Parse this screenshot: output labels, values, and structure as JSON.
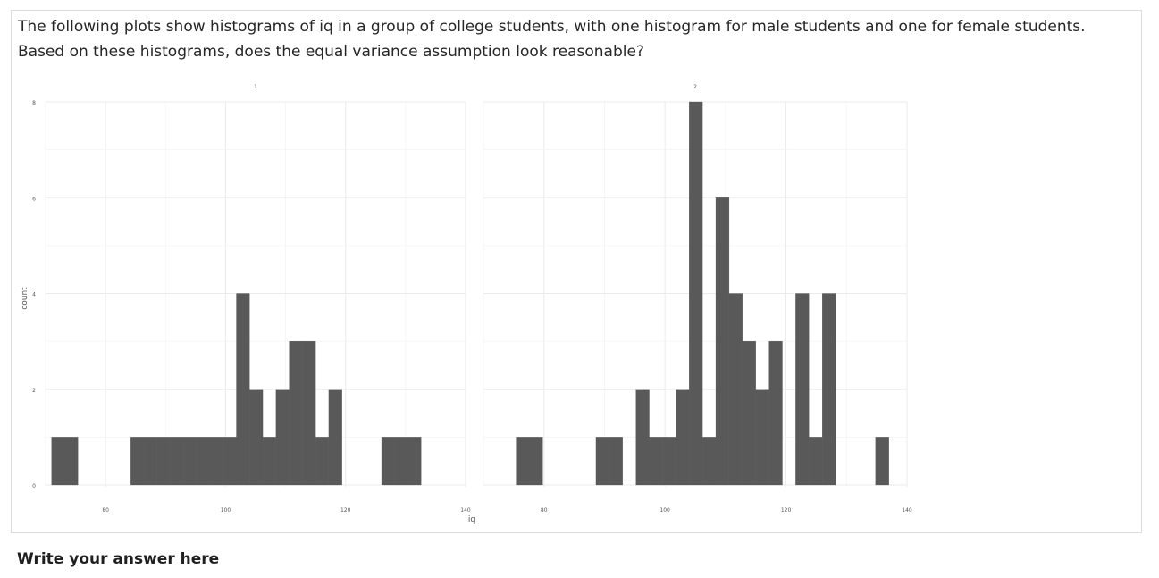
{
  "question": {
    "text": "The following plots show histograms of iq in a group of college students, with one histogram for male students and one for female students. Based on these histograms, does the equal variance assumption look reasonable?"
  },
  "answer": {
    "heading": "Write your answer here"
  },
  "chart_data": {
    "type": "bar",
    "xlabel": "iq",
    "ylabel": "count",
    "xlim": [
      70,
      140
    ],
    "ylim": [
      0,
      8
    ],
    "x_ticks": [
      80,
      100,
      120,
      140
    ],
    "y_ticks": [
      0,
      2,
      4,
      6,
      8
    ],
    "grid": true,
    "bin_width": 2.2,
    "bar_color": "#595959",
    "facets": [
      {
        "label": "1",
        "bins": [
          {
            "x": 72.1,
            "count": 1
          },
          {
            "x": 74.3,
            "count": 1
          },
          {
            "x": 85.3,
            "count": 1
          },
          {
            "x": 87.5,
            "count": 1
          },
          {
            "x": 89.7,
            "count": 1
          },
          {
            "x": 91.9,
            "count": 1
          },
          {
            "x": 94.1,
            "count": 1
          },
          {
            "x": 96.3,
            "count": 1
          },
          {
            "x": 98.5,
            "count": 1
          },
          {
            "x": 100.7,
            "count": 1
          },
          {
            "x": 102.9,
            "count": 4
          },
          {
            "x": 105.1,
            "count": 2
          },
          {
            "x": 107.3,
            "count": 1
          },
          {
            "x": 109.5,
            "count": 2
          },
          {
            "x": 111.7,
            "count": 3
          },
          {
            "x": 113.9,
            "count": 3
          },
          {
            "x": 116.1,
            "count": 1
          },
          {
            "x": 118.3,
            "count": 2
          },
          {
            "x": 127.1,
            "count": 1
          },
          {
            "x": 129.3,
            "count": 1
          },
          {
            "x": 131.5,
            "count": 1
          }
        ]
      },
      {
        "label": "2",
        "bins": [
          {
            "x": 76.5,
            "count": 1
          },
          {
            "x": 78.7,
            "count": 1
          },
          {
            "x": 89.7,
            "count": 1
          },
          {
            "x": 91.9,
            "count": 1
          },
          {
            "x": 96.3,
            "count": 2
          },
          {
            "x": 98.5,
            "count": 1
          },
          {
            "x": 100.7,
            "count": 1
          },
          {
            "x": 102.9,
            "count": 2
          },
          {
            "x": 105.1,
            "count": 8
          },
          {
            "x": 107.3,
            "count": 1
          },
          {
            "x": 109.5,
            "count": 6
          },
          {
            "x": 111.7,
            "count": 4
          },
          {
            "x": 113.9,
            "count": 3
          },
          {
            "x": 116.1,
            "count": 2
          },
          {
            "x": 118.3,
            "count": 3
          },
          {
            "x": 122.7,
            "count": 4
          },
          {
            "x": 124.9,
            "count": 1
          },
          {
            "x": 127.1,
            "count": 4
          },
          {
            "x": 135.9,
            "count": 1
          }
        ]
      }
    ]
  }
}
